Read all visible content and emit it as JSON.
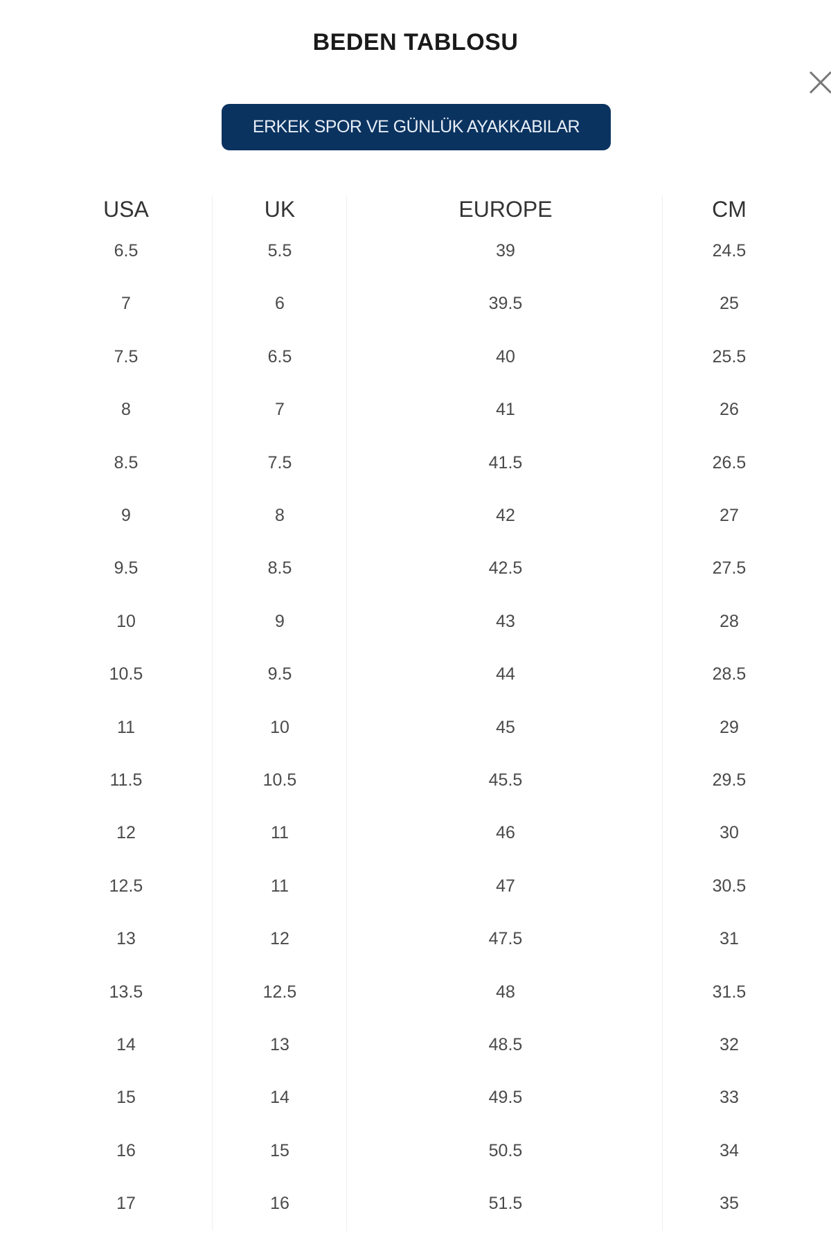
{
  "title": "BEDEN TABLOSU",
  "category_button": "ERKEK SPOR VE GÜNLÜK AYAKKABILAR",
  "close_icon": "close-icon",
  "accent_color": "#0b3360",
  "table": {
    "headers": [
      "USA",
      "UK",
      "EUROPE",
      "CM"
    ],
    "rows": [
      [
        "6.5",
        "5.5",
        "39",
        "24.5"
      ],
      [
        "7",
        "6",
        "39.5",
        "25"
      ],
      [
        "7.5",
        "6.5",
        "40",
        "25.5"
      ],
      [
        "8",
        "7",
        "41",
        "26"
      ],
      [
        "8.5",
        "7.5",
        "41.5",
        "26.5"
      ],
      [
        "9",
        "8",
        "42",
        "27"
      ],
      [
        "9.5",
        "8.5",
        "42.5",
        "27.5"
      ],
      [
        "10",
        "9",
        "43",
        "28"
      ],
      [
        "10.5",
        "9.5",
        "44",
        "28.5"
      ],
      [
        "11",
        "10",
        "45",
        "29"
      ],
      [
        "11.5",
        "10.5",
        "45.5",
        "29.5"
      ],
      [
        "12",
        "11",
        "46",
        "30"
      ],
      [
        "12.5",
        "11",
        "47",
        "30.5"
      ],
      [
        "13",
        "12",
        "47.5",
        "31"
      ],
      [
        "13.5",
        "12.5",
        "48",
        "31.5"
      ],
      [
        "14",
        "13",
        "48.5",
        "32"
      ],
      [
        "15",
        "14",
        "49.5",
        "33"
      ],
      [
        "16",
        "15",
        "50.5",
        "34"
      ],
      [
        "17",
        "16",
        "51.5",
        "35"
      ]
    ]
  }
}
